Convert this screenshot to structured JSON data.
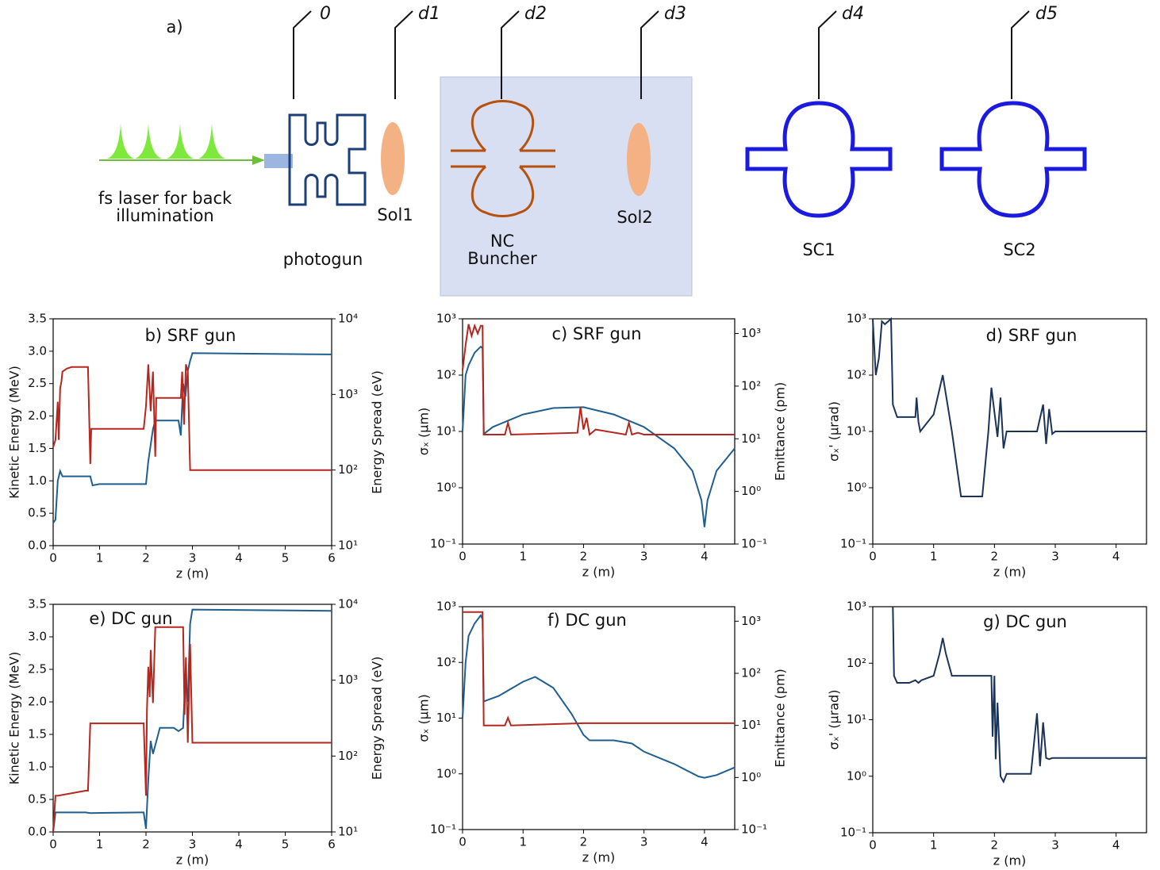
{
  "diagram": {
    "panel_label": "a)",
    "stations": [
      "0",
      "d1",
      "d2",
      "d3",
      "d4",
      "d5"
    ],
    "laser_label": [
      "fs laser for back",
      "illumination"
    ],
    "labels": {
      "photogun": "photogun",
      "sol1": "Sol1",
      "buncher": [
        "NC",
        "Buncher"
      ],
      "sol2": "Sol2",
      "sc1": "SC1",
      "sc2": "SC2"
    }
  },
  "chart_data": [
    {
      "type": "line",
      "title": "b) SRF gun",
      "xlabel": "z (m)",
      "ylabel": "Kinetic Energy (MeV)",
      "y2label": "Energy Spread (eV)",
      "xlim": [
        0,
        6
      ],
      "xticks": [
        0,
        1,
        2,
        3,
        4,
        5,
        6
      ],
      "ylim": [
        0,
        3.5
      ],
      "yticks": [
        {
          "value": 0,
          "label": "0.0"
        },
        0.5,
        {
          "value": 1,
          "label": "1.0"
        },
        1.5,
        {
          "value": 2,
          "label": "2.0"
        },
        2.5,
        {
          "value": 3,
          "label": "3.0"
        },
        3.5
      ],
      "y2lim": [
        10,
        10000
      ],
      "y2log": true,
      "y2ticks": [
        {
          "value": 10,
          "label": "10¹"
        },
        {
          "value": 100,
          "label": "10²"
        },
        {
          "value": 1000,
          "label": "10³"
        },
        {
          "value": 10000,
          "label": "10⁴"
        }
      ],
      "series": [
        {
          "color": "#1f5f8f",
          "x": [
            0,
            0.05,
            0.1,
            0.15,
            0.2,
            0.8,
            0.85,
            1,
            1.9,
            2,
            2.05,
            2.15,
            2.2,
            2.7,
            2.75,
            2.8,
            2.85,
            2.9,
            2.95,
            3,
            6
          ],
          "values": [
            0.35,
            0.4,
            1.0,
            1.15,
            1.07,
            1.07,
            0.93,
            0.95,
            0.95,
            0.95,
            1.3,
            1.8,
            1.93,
            1.93,
            1.7,
            2.5,
            2.3,
            2.7,
            2.85,
            2.97,
            2.95
          ]
        },
        {
          "color": "#b5261e",
          "axis": "y2",
          "x": [
            0,
            0.05,
            0.1,
            0.12,
            0.15,
            0.18,
            0.2,
            0.3,
            0.4,
            0.75,
            0.8,
            0.82,
            1,
            1.95,
            2.0,
            2.05,
            2.1,
            2.15,
            2.2,
            2.22,
            2.3,
            2.75,
            2.78,
            2.82,
            2.86,
            2.9,
            2.95,
            3,
            6
          ],
          "values": [
            200,
            250,
            800,
            250,
            1200,
            1500,
            2000,
            2200,
            2300,
            2300,
            120,
            350,
            350,
            350,
            700,
            2500,
            600,
            2000,
            150,
            900,
            900,
            900,
            2000,
            400,
            2500,
            2000,
            100,
            100,
            100
          ]
        }
      ]
    },
    {
      "type": "line",
      "title": "c) SRF gun",
      "xlabel": "z (m)",
      "ylabel": "σₓ (μm)",
      "y2label": "Emittance (pm)",
      "xlim": [
        0,
        4.5
      ],
      "xticks": [
        0,
        1,
        2,
        3,
        4
      ],
      "ylim": [
        0.1,
        1000
      ],
      "ylog": true,
      "yticks": [
        {
          "value": 0.1,
          "label": "10⁻¹"
        },
        {
          "value": 1,
          "label": "10⁰"
        },
        {
          "value": 10,
          "label": "10¹"
        },
        {
          "value": 100,
          "label": "10²"
        },
        {
          "value": 1000,
          "label": "10³"
        }
      ],
      "y2lim": [
        0.1,
        1900
      ],
      "y2log": true,
      "y2ticks": [
        {
          "value": 0.1,
          "label": "10⁻¹"
        },
        {
          "value": 1,
          "label": "10⁰"
        },
        {
          "value": 10,
          "label": "10¹"
        },
        {
          "value": 100,
          "label": "10²"
        },
        {
          "value": 1000,
          "label": "10³"
        }
      ],
      "series": [
        {
          "color": "#1f5f8f",
          "x": [
            0,
            0.05,
            0.1,
            0.2,
            0.3,
            0.33,
            0.35,
            0.5,
            1,
            1.5,
            2,
            2.5,
            3,
            3.5,
            3.8,
            3.95,
            4.0,
            4.05,
            4.2,
            4.5
          ],
          "values": [
            10,
            100,
            150,
            250,
            320,
            300,
            9,
            12,
            20,
            26,
            27,
            20,
            12,
            5,
            2,
            0.6,
            0.2,
            0.6,
            2,
            5
          ]
        },
        {
          "color": "#b5261e",
          "axis": "y2",
          "x": [
            0,
            0.05,
            0.1,
            0.15,
            0.2,
            0.25,
            0.3,
            0.33,
            0.35,
            0.7,
            0.75,
            0.8,
            1.9,
            1.95,
            2.0,
            2.05,
            2.1,
            2.2,
            2.7,
            2.75,
            2.8,
            2.9,
            3,
            4.5
          ],
          "values": [
            200,
            600,
            1500,
            900,
            1400,
            1000,
            1400,
            1400,
            12,
            12,
            20,
            12,
            13,
            40,
            15,
            25,
            12,
            15,
            12,
            20,
            12,
            13,
            12,
            12
          ]
        }
      ]
    },
    {
      "type": "line",
      "title": "d) SRF gun",
      "xlabel": "z (m)",
      "ylabel": "σₓ' (μrad)",
      "xlim": [
        0,
        4.5
      ],
      "xticks": [
        0,
        1,
        2,
        3,
        4
      ],
      "ylim": [
        0.1,
        1000
      ],
      "ylog": true,
      "yticks": [
        {
          "value": 0.1,
          "label": "10⁻¹"
        },
        {
          "value": 1,
          "label": "10⁰"
        },
        {
          "value": 10,
          "label": "10¹"
        },
        {
          "value": 100,
          "label": "10²"
        },
        {
          "value": 1000,
          "label": "10³"
        }
      ],
      "series": [
        {
          "color": "#1b3358",
          "x": [
            0,
            0.05,
            0.1,
            0.15,
            0.2,
            0.3,
            0.33,
            0.4,
            0.7,
            0.72,
            0.75,
            0.78,
            1,
            1.15,
            1.3,
            1.45,
            1.8,
            1.9,
            1.95,
            2.05,
            2.1,
            2.15,
            2.2,
            2.3,
            2.7,
            2.8,
            2.85,
            2.9,
            2.95,
            3,
            4.5
          ],
          "values": [
            1000,
            100,
            200,
            900,
            800,
            1000,
            30,
            18,
            18,
            40,
            15,
            10,
            20,
            100,
            10,
            0.7,
            0.7,
            10,
            60,
            8,
            40,
            5,
            10,
            10,
            10,
            30,
            6,
            25,
            9,
            10,
            10
          ]
        }
      ]
    },
    {
      "type": "line",
      "title": "e) DC gun",
      "xlabel": "z (m)",
      "ylabel": "Kinetic Energy (MeV)",
      "y2label": "Energy Spread (eV)",
      "xlim": [
        0,
        6
      ],
      "xticks": [
        0,
        1,
        2,
        3,
        4,
        5,
        6
      ],
      "ylim": [
        0,
        3.5
      ],
      "yticks": [
        {
          "value": 0,
          "label": "0.0"
        },
        0.5,
        {
          "value": 1,
          "label": "1.0"
        },
        1.5,
        {
          "value": 2,
          "label": "2.0"
        },
        2.5,
        {
          "value": 3,
          "label": "3.0"
        },
        3.5
      ],
      "y2lim": [
        10,
        10000
      ],
      "y2log": true,
      "y2ticks": [
        {
          "value": 10,
          "label": "10¹"
        },
        {
          "value": 100,
          "label": "10²"
        },
        {
          "value": 1000,
          "label": "10³"
        },
        {
          "value": 10000,
          "label": "10⁴"
        }
      ],
      "series": [
        {
          "color": "#1f5f8f",
          "x": [
            0,
            0.05,
            0.1,
            0.7,
            0.8,
            1.9,
            1.95,
            2.0,
            2.05,
            2.1,
            2.15,
            2.3,
            2.6,
            2.7,
            2.8,
            2.85,
            2.9,
            2.95,
            3,
            6
          ],
          "values": [
            0,
            0.3,
            0.3,
            0.3,
            0.29,
            0.3,
            0.3,
            0.05,
            0.8,
            1.4,
            1.2,
            1.6,
            1.6,
            1.55,
            1.6,
            2.4,
            2.0,
            3.2,
            3.42,
            3.4
          ]
        },
        {
          "color": "#b5261e",
          "axis": "y2",
          "x": [
            0,
            0.05,
            0.1,
            0.7,
            0.75,
            0.8,
            1.95,
            2.0,
            2.02,
            2.05,
            2.08,
            2.1,
            2.15,
            2.2,
            2.3,
            2.8,
            2.83,
            2.86,
            2.9,
            2.95,
            3,
            6
          ],
          "values": [
            10,
            30,
            30,
            35,
            35,
            270,
            270,
            30,
            400,
            1500,
            600,
            2500,
            500,
            5000,
            5000,
            5000,
            350,
            2000,
            150,
            3000,
            150,
            150
          ]
        }
      ]
    },
    {
      "type": "line",
      "title": "f) DC gun",
      "xlabel": "z (m)",
      "ylabel": "σₓ (μm)",
      "y2label": "Emittance (pm)",
      "xlim": [
        0,
        4.5
      ],
      "xticks": [
        0,
        1,
        2,
        3,
        4
      ],
      "ylim": [
        0.1,
        1000
      ],
      "ylog": true,
      "yticks": [
        {
          "value": 0.1,
          "label": "10⁻¹"
        },
        {
          "value": 1,
          "label": "10⁰"
        },
        {
          "value": 10,
          "label": "10¹"
        },
        {
          "value": 100,
          "label": "10²"
        },
        {
          "value": 1000,
          "label": "10³"
        }
      ],
      "y2lim": [
        0.1,
        1900
      ],
      "y2log": true,
      "y2ticks": [
        {
          "value": 0.1,
          "label": "10⁻¹"
        },
        {
          "value": 1,
          "label": "10⁰"
        },
        {
          "value": 10,
          "label": "10¹"
        },
        {
          "value": 100,
          "label": "10²"
        },
        {
          "value": 1000,
          "label": "10³"
        }
      ],
      "series": [
        {
          "color": "#1f5f8f",
          "x": [
            0,
            0.05,
            0.1,
            0.2,
            0.3,
            0.33,
            0.35,
            0.6,
            1.0,
            1.2,
            1.5,
            1.8,
            2.0,
            2.1,
            2.5,
            2.8,
            3.0,
            3.5,
            3.9,
            4.0,
            4.2,
            4.5
          ],
          "values": [
            10,
            100,
            300,
            500,
            700,
            600,
            20,
            25,
            45,
            55,
            35,
            12,
            5,
            4,
            4,
            3.5,
            2.5,
            1.5,
            0.9,
            0.85,
            0.95,
            1.3
          ]
        },
        {
          "color": "#b5261e",
          "axis": "y2",
          "x": [
            0,
            0.3,
            0.33,
            0.35,
            0.7,
            0.75,
            0.8,
            2,
            4.5
          ],
          "values": [
            1500,
            1500,
            1500,
            10,
            10,
            14,
            10,
            11,
            11
          ]
        }
      ]
    },
    {
      "type": "line",
      "title": "g) DC gun",
      "xlabel": "z (m)",
      "ylabel": "σₓ' (μrad)",
      "xlim": [
        0,
        4.5
      ],
      "xticks": [
        0,
        1,
        2,
        3,
        4
      ],
      "ylim": [
        0.1,
        1000
      ],
      "ylog": true,
      "yticks": [
        {
          "value": 0.1,
          "label": "10⁻¹"
        },
        {
          "value": 1,
          "label": "10⁰"
        },
        {
          "value": 10,
          "label": "10¹"
        },
        {
          "value": 100,
          "label": "10²"
        },
        {
          "value": 1000,
          "label": "10³"
        }
      ],
      "series": [
        {
          "color": "#1b3358",
          "x": [
            0.33,
            0.35,
            0.4,
            0.6,
            0.7,
            0.75,
            0.8,
            1.0,
            1.1,
            1.15,
            1.2,
            1.3,
            1.5,
            1.95,
            1.97,
            2.0,
            2.02,
            2.05,
            2.1,
            2.15,
            2.2,
            2.25,
            2.3,
            2.6,
            2.7,
            2.75,
            2.8,
            2.85,
            2.9,
            2.95,
            3,
            4.5
          ],
          "values": [
            1000,
            60,
            45,
            45,
            50,
            45,
            50,
            60,
            150,
            280,
            150,
            60,
            60,
            60,
            5,
            60,
            2,
            20,
            1,
            0.8,
            1.1,
            1.1,
            1.1,
            1.1,
            13,
            1.5,
            9,
            2.1,
            2,
            2.1,
            2.1,
            2.1
          ]
        }
      ]
    }
  ]
}
